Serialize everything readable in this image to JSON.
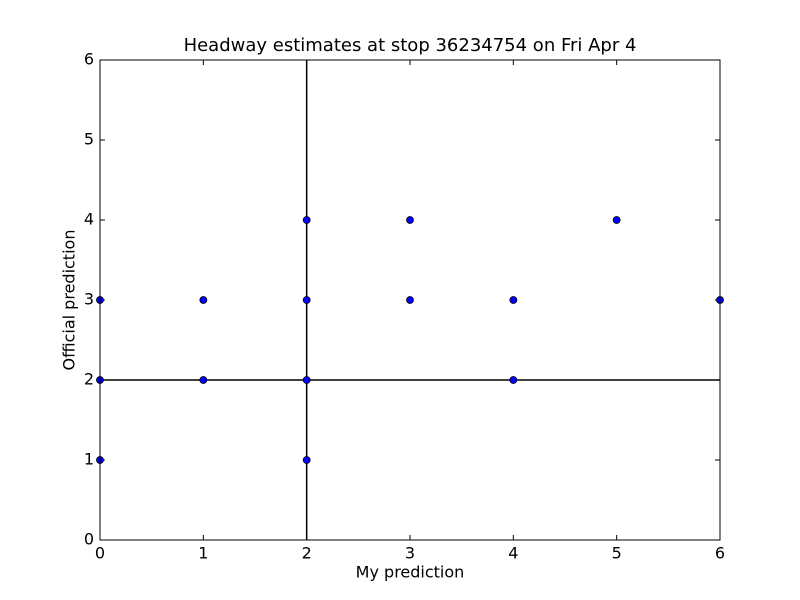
{
  "chart_data": {
    "type": "scatter",
    "title": "Headway estimates at stop 36234754 on Fri Apr 4",
    "x_label": "My prediction",
    "y_label": "Official prediction",
    "series": [
      {
        "color": "#0000ff",
        "x": [
          0,
          0,
          0,
          1,
          1,
          2,
          2,
          2,
          2,
          3,
          3,
          4,
          4,
          5,
          6
        ],
        "values": [
          3,
          2,
          1,
          3,
          2,
          4,
          3,
          2,
          1,
          4,
          3,
          3,
          2,
          4,
          3
        ]
      }
    ],
    "hlines": [
      2
    ],
    "vlines": [
      2
    ],
    "xlim": [
      0,
      6
    ],
    "ylim": [
      0,
      6
    ],
    "xticks": [
      0,
      1,
      2,
      3,
      4,
      5,
      6
    ],
    "yticks": [
      0,
      1,
      2,
      3,
      4,
      5,
      6
    ]
  }
}
